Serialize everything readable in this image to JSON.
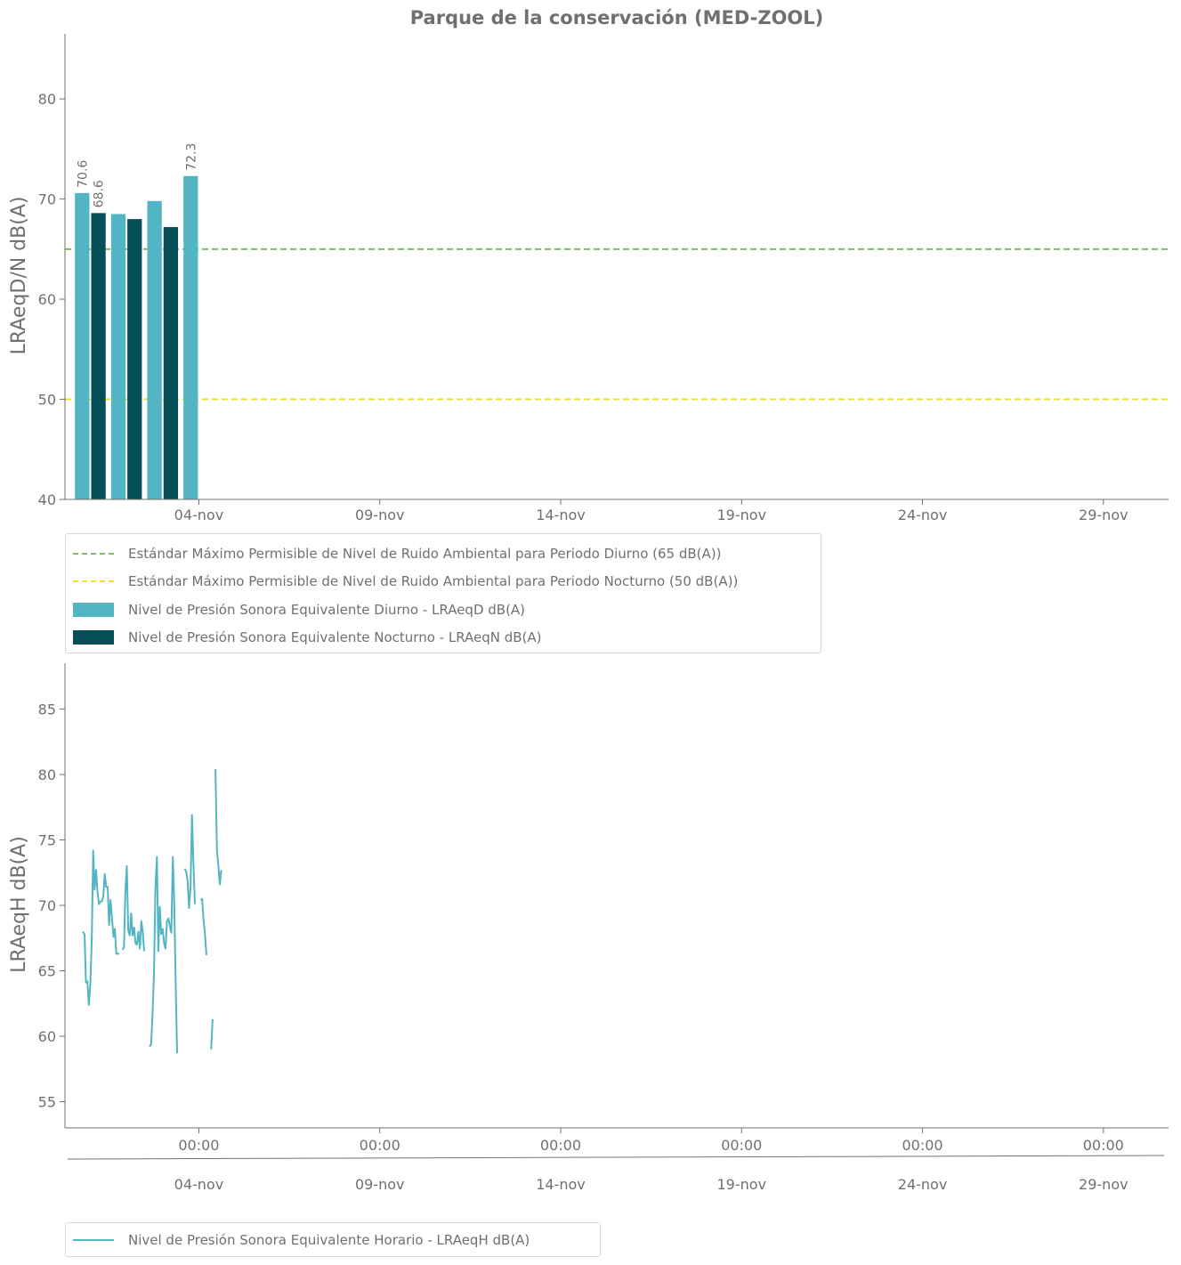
{
  "title": "Parque de la conservación  (MED-ZOOL)",
  "colors": {
    "day_bar": "#52b5c3",
    "night_bar": "#064f59",
    "std_day": "#7fba68",
    "std_night": "#f2e030",
    "hourly_line": "#52b5c3",
    "axis": "#707070"
  },
  "chart_data": [
    {
      "type": "bar",
      "ylabel": "LRAeqD/N dB(A)",
      "ylim": [
        40,
        86.5
      ],
      "yticks": [
        40,
        50,
        60,
        70,
        80
      ],
      "xlim_days": [
        0.3,
        30.8
      ],
      "xticks": [
        {
          "day": 4,
          "label": "04-nov"
        },
        {
          "day": 9,
          "label": "09-nov"
        },
        {
          "day": 14,
          "label": "14-nov"
        },
        {
          "day": 19,
          "label": "19-nov"
        },
        {
          "day": 24,
          "label": "24-nov"
        },
        {
          "day": 29,
          "label": "29-nov"
        }
      ],
      "series": [
        {
          "name": "Nivel de Presión Sonora Equivalente Diurno - LRAeqD dB(A)",
          "kind": "day",
          "dates": [
            "01-nov",
            "02-nov",
            "03-nov",
            "04-nov"
          ],
          "days": [
            1,
            2,
            3,
            4
          ],
          "values": [
            70.6,
            68.5,
            69.8,
            72.3
          ]
        },
        {
          "name": "Nivel de Presión Sonora Equivalente Nocturno - LRAeqN dB(A)",
          "kind": "night",
          "dates": [
            "01-nov",
            "02-nov",
            "03-nov"
          ],
          "days": [
            1,
            2,
            3
          ],
          "values": [
            68.6,
            68.0,
            67.2
          ]
        }
      ],
      "data_labels": [
        {
          "series": "day",
          "index": 0,
          "text": "70.6"
        },
        {
          "series": "night",
          "index": 0,
          "text": "68.6"
        },
        {
          "series": "day",
          "index": 3,
          "text": "72.3"
        }
      ],
      "reference_lines": [
        {
          "name": "Estándar Máximo Permisible de Nivel de Ruido Ambiental para Periodo Diurno (65 dB(A))",
          "value": 65,
          "color_key": "std_day"
        },
        {
          "name": "Estándar Máximo Permisible de Nivel de Ruido Ambiental para Periodo Nocturno (50 dB(A))",
          "value": 50,
          "color_key": "std_night"
        }
      ]
    },
    {
      "type": "line",
      "ylabel": "LRAeqH dB(A)",
      "ylim": [
        53,
        88.5
      ],
      "yticks": [
        55,
        60,
        65,
        70,
        75,
        80,
        85
      ],
      "xlim_days": [
        0.3,
        30.8
      ],
      "xticks_time": [
        "00:00",
        "00:00",
        "00:00",
        "00:00",
        "00:00",
        "00:00"
      ],
      "xticks_date": [
        "04-nov",
        "09-nov",
        "14-nov",
        "19-nov",
        "24-nov",
        "29-nov"
      ],
      "xtick_days": [
        4,
        9,
        14,
        19,
        24,
        29
      ],
      "series": [
        {
          "name": "Nivel de Presión Sonora Equivalente Horario - LRAeqH dB(A)",
          "segments": [
            [
              [
                0.79,
                68.0
              ],
              [
                0.84,
                67.8
              ],
              [
                0.88,
                64.1
              ],
              [
                0.92,
                64.2
              ],
              [
                0.96,
                62.4
              ],
              [
                1.0,
                64.0
              ],
              [
                1.04,
                67.3
              ],
              [
                1.08,
                74.2
              ],
              [
                1.12,
                71.2
              ],
              [
                1.16,
                72.7
              ],
              [
                1.2,
                71.0
              ],
              [
                1.24,
                70.1
              ],
              [
                1.28,
                70.3
              ],
              [
                1.32,
                70.3
              ],
              [
                1.36,
                70.7
              ],
              [
                1.4,
                72.4
              ],
              [
                1.44,
                71.4
              ],
              [
                1.48,
                71.4
              ],
              [
                1.52,
                68.5
              ],
              [
                1.56,
                70.4
              ],
              [
                1.6,
                69.0
              ],
              [
                1.64,
                67.6
              ],
              [
                1.68,
                68.2
              ],
              [
                1.72,
                66.3
              ],
              [
                1.76,
                66.3
              ],
              [
                1.8,
                66.3
              ]
            ],
            [
              [
                1.89,
                66.6
              ],
              [
                1.93,
                66.8
              ],
              [
                1.97,
                71.1
              ],
              [
                2.01,
                73.0
              ],
              [
                2.05,
                68.1
              ],
              [
                2.09,
                67.7
              ],
              [
                2.13,
                69.4
              ],
              [
                2.17,
                67.7
              ],
              [
                2.21,
                68.3
              ],
              [
                2.25,
                67.1
              ],
              [
                2.29,
                67.0
              ],
              [
                2.33,
                68.0
              ],
              [
                2.37,
                66.7
              ],
              [
                2.41,
                68.8
              ],
              [
                2.45,
                68.0
              ],
              [
                2.49,
                66.5
              ]
            ],
            [
              [
                2.64,
                59.2
              ],
              [
                2.68,
                59.4
              ],
              [
                2.72,
                61.7
              ],
              [
                2.76,
                64.8
              ],
              [
                2.8,
                71.3
              ],
              [
                2.84,
                73.7
              ],
              [
                2.88,
                66.5
              ],
              [
                2.92,
                69.9
              ],
              [
                2.96,
                67.8
              ],
              [
                3.0,
                68.2
              ],
              [
                3.04,
                67.1
              ],
              [
                3.08,
                66.7
              ],
              [
                3.12,
                68.8
              ],
              [
                3.16,
                69.0
              ],
              [
                3.2,
                68.4
              ],
              [
                3.24,
                67.9
              ],
              [
                3.28,
                73.7
              ],
              [
                3.32,
                70.1
              ],
              [
                3.36,
                64.1
              ],
              [
                3.4,
                58.7
              ]
            ],
            [
              [
                3.61,
                72.8
              ],
              [
                3.65,
                72.6
              ],
              [
                3.69,
                71.9
              ],
              [
                3.73,
                69.8
              ],
              [
                3.77,
                71.4
              ],
              [
                3.81,
                76.9
              ],
              [
                3.85,
                73.3
              ],
              [
                3.89,
                70.1
              ]
            ],
            [
              [
                4.05,
                70.4
              ],
              [
                4.09,
                70.5
              ],
              [
                4.13,
                68.9
              ],
              [
                4.17,
                67.8
              ],
              [
                4.21,
                66.2
              ]
            ],
            [
              [
                4.34,
                59.0
              ],
              [
                4.38,
                61.3
              ]
            ],
            [
              [
                4.46,
                80.4
              ],
              [
                4.5,
                74.1
              ],
              [
                4.54,
                73.0
              ],
              [
                4.58,
                71.6
              ],
              [
                4.62,
                72.7
              ]
            ]
          ]
        }
      ]
    }
  ]
}
